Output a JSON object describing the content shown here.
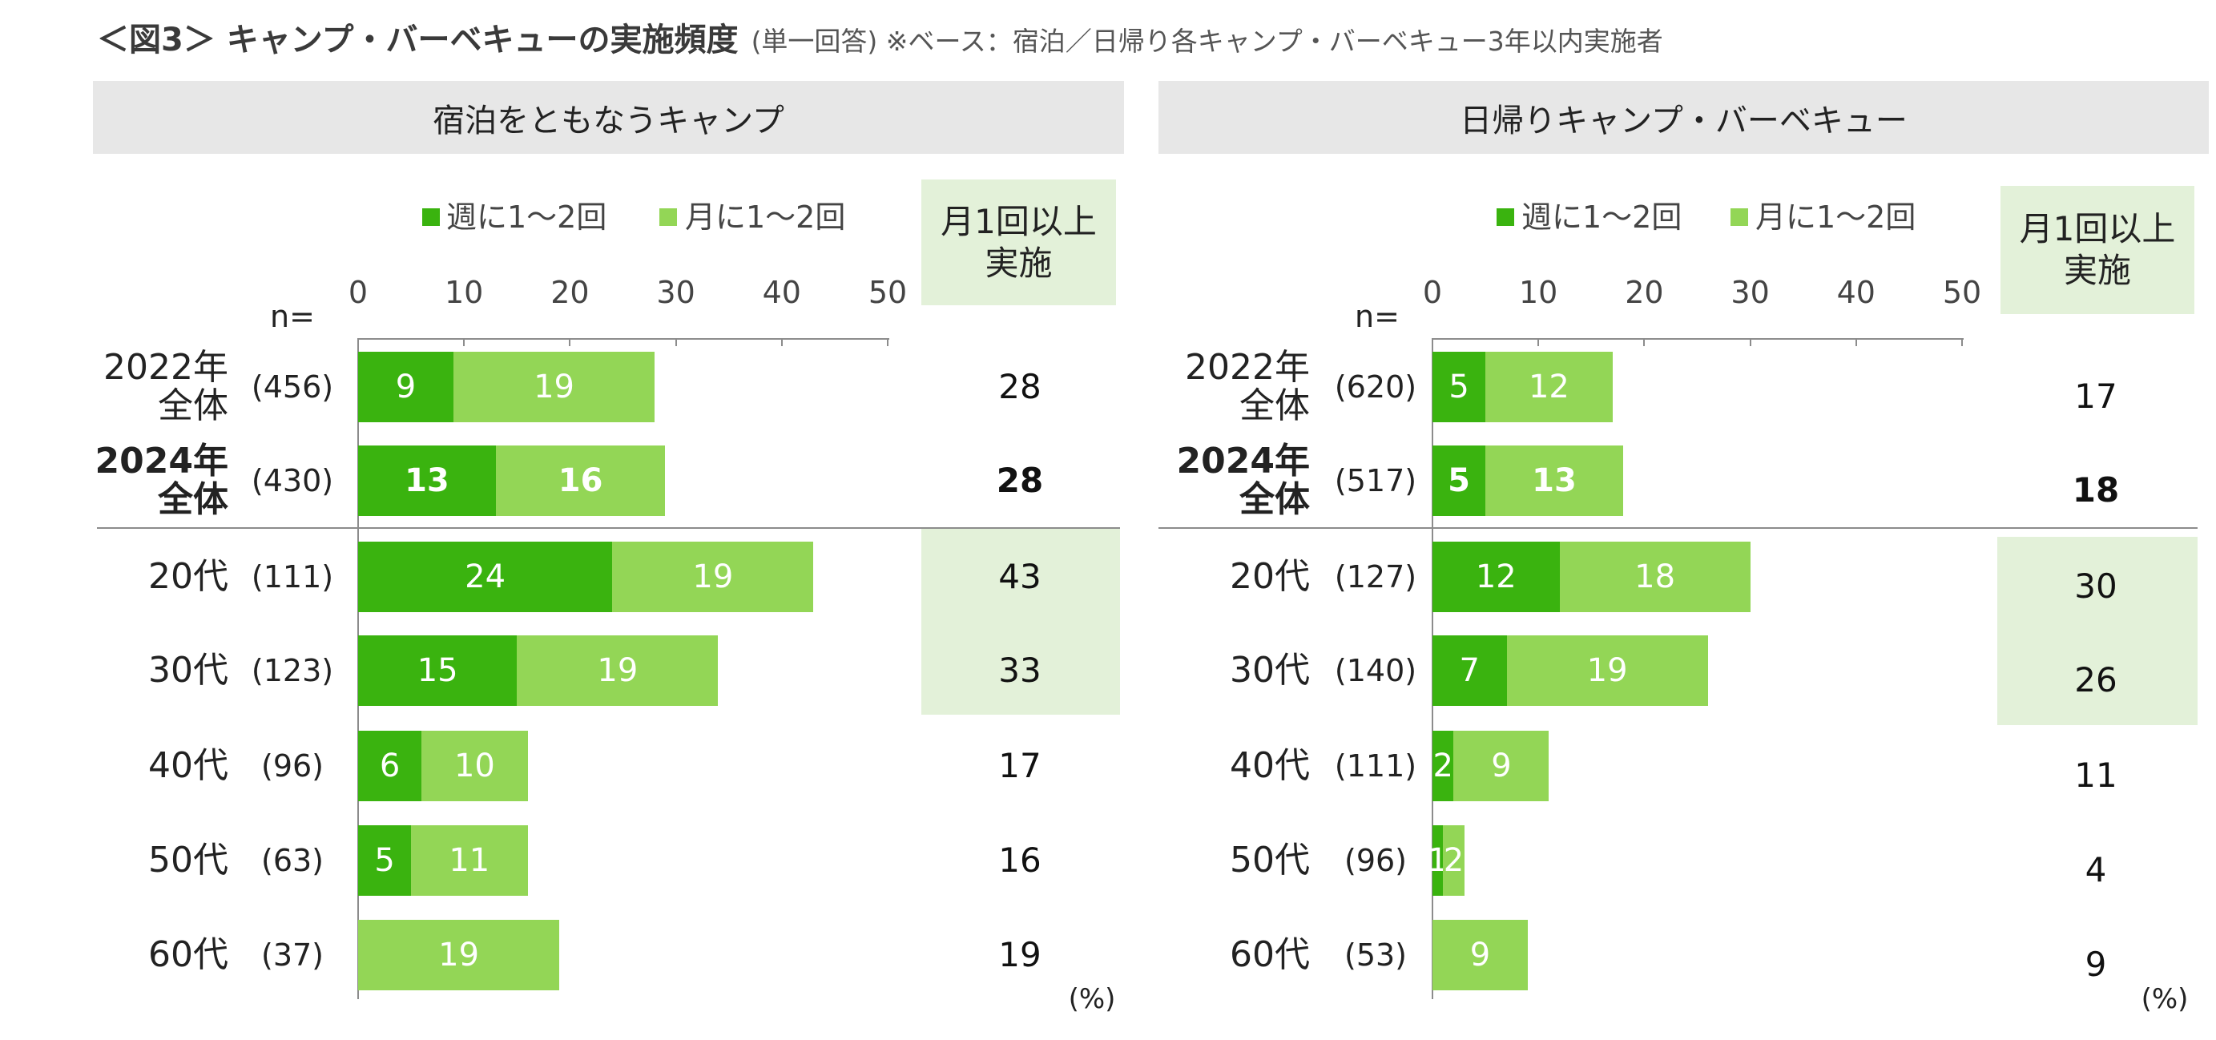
{
  "title": {
    "main": "＜図3＞ キャンプ・バーベキューの実施頻度",
    "sub": "(単一回答) ※ベース：宿泊／日帰り各キャンプ・バーベキュー3年以内実施者"
  },
  "colors": {
    "weekly": "#3ab30f",
    "monthly": "#93d656",
    "header_bg": "#e7e7e7",
    "highlight_bg": "#e3f1d9",
    "axis": "#8c8c8c"
  },
  "chart_data": [
    {
      "type": "bar",
      "orientation": "horizontal",
      "stacked": true,
      "title": "宿泊をともなうキャンプ",
      "n_label": "n=",
      "xlim": [
        0,
        50
      ],
      "xticks": [
        0,
        10,
        20,
        30,
        40,
        50
      ],
      "total_header": [
        "月1回以上",
        "実施"
      ],
      "unit": "(%)",
      "categories": [
        {
          "label": [
            "2022年",
            "全体"
          ],
          "n": "(456)"
        },
        {
          "label": [
            "2024年",
            "全体"
          ],
          "n": "(430)"
        },
        {
          "label": [
            "20代"
          ],
          "n": "(111)"
        },
        {
          "label": [
            "30代"
          ],
          "n": "(123)"
        },
        {
          "label": [
            "40代"
          ],
          "n": "(96)"
        },
        {
          "label": [
            "50代"
          ],
          "n": "(63)"
        },
        {
          "label": [
            "60代"
          ],
          "n": "(37)"
        }
      ],
      "series": [
        {
          "name": "週に1～2回",
          "color_key": "weekly",
          "values": [
            9,
            13,
            24,
            15,
            6,
            5,
            null
          ]
        },
        {
          "name": "月に1～2回",
          "color_key": "monthly",
          "values": [
            19,
            16,
            19,
            19,
            10,
            11,
            19
          ]
        }
      ],
      "totals": [
        28,
        28,
        43,
        33,
        17,
        16,
        19
      ],
      "emphasis_row": 1,
      "highlight_rows": [
        2,
        3
      ]
    },
    {
      "type": "bar",
      "orientation": "horizontal",
      "stacked": true,
      "title": "日帰りキャンプ・バーベキュー",
      "n_label": "n=",
      "xlim": [
        0,
        50
      ],
      "xticks": [
        0,
        10,
        20,
        30,
        40,
        50
      ],
      "total_header": [
        "月1回以上",
        "実施"
      ],
      "unit": "(%)",
      "categories": [
        {
          "label": [
            "2022年",
            "全体"
          ],
          "n": "(620)"
        },
        {
          "label": [
            "2024年",
            "全体"
          ],
          "n": "(517)"
        },
        {
          "label": [
            "20代"
          ],
          "n": "(127)"
        },
        {
          "label": [
            "30代"
          ],
          "n": "(140)"
        },
        {
          "label": [
            "40代"
          ],
          "n": "(111)"
        },
        {
          "label": [
            "50代"
          ],
          "n": "(96)"
        },
        {
          "label": [
            "60代"
          ],
          "n": "(53)"
        }
      ],
      "series": [
        {
          "name": "週に1～2回",
          "color_key": "weekly",
          "values": [
            5,
            5,
            12,
            7,
            2,
            1,
            null
          ]
        },
        {
          "name": "月に1～2回",
          "color_key": "monthly",
          "values": [
            12,
            13,
            18,
            19,
            9,
            2,
            9
          ]
        }
      ],
      "totals": [
        17,
        18,
        30,
        26,
        11,
        4,
        9
      ],
      "emphasis_row": 1,
      "highlight_rows": [
        2,
        3
      ]
    }
  ]
}
